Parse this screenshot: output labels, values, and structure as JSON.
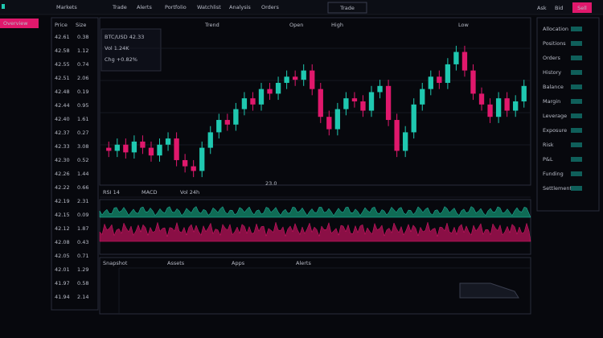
{
  "topbar": {
    "items": [
      "Markets",
      "Trade",
      "Alerts",
      "Portfolio",
      "Watchlist",
      "Analysis",
      "Orders"
    ],
    "button": "Trade",
    "right": [
      "Ask",
      "Bid"
    ],
    "action": "Sell"
  },
  "sidebar": {
    "active": "Overview"
  },
  "order_book": {
    "header": [
      "Price",
      "Size"
    ],
    "rows": [
      [
        "42.61",
        "0.38"
      ],
      [
        "42.58",
        "1.12"
      ],
      [
        "42.55",
        "0.74"
      ],
      [
        "42.51",
        "2.06"
      ],
      [
        "42.48",
        "0.19"
      ],
      [
        "42.44",
        "0.95"
      ],
      [
        "42.40",
        "1.61"
      ],
      [
        "42.37",
        "0.27"
      ],
      [
        "42.33",
        "3.08"
      ],
      [
        "42.30",
        "0.52"
      ],
      [
        "42.26",
        "1.44"
      ],
      [
        "42.22",
        "0.66"
      ],
      [
        "42.19",
        "2.31"
      ],
      [
        "42.15",
        "0.09"
      ],
      [
        "42.12",
        "1.87"
      ],
      [
        "42.08",
        "0.43"
      ],
      [
        "42.05",
        "0.71"
      ],
      [
        "42.01",
        "1.29"
      ],
      [
        "41.97",
        "0.58"
      ],
      [
        "41.94",
        "2.14"
      ]
    ]
  },
  "chart_header": {
    "labels": [
      "Trend",
      "Open",
      "High",
      "Low"
    ],
    "info": [
      "BTC/USD 42.33",
      "Vol 1.24K",
      "Chg +0.82%"
    ]
  },
  "indicators": {
    "labels": [
      "RSI 14",
      "MACD",
      "Vol 24h"
    ],
    "value": "23.0"
  },
  "bottom_panel": {
    "tabs": [
      "Snapshot",
      "Assets",
      "Apps",
      "Alerts"
    ]
  },
  "right_panel": {
    "rows": [
      "Allocation",
      "Positions",
      "Orders",
      "History",
      "Balance",
      "Margin",
      "Leverage",
      "Exposure",
      "Risk",
      "P&L",
      "Funding",
      "Settlement"
    ]
  },
  "chart_data": {
    "type": "candlestick",
    "open": [
      20,
      18,
      22,
      17,
      24,
      20,
      15,
      22,
      26,
      12,
      8,
      5,
      20,
      30,
      38,
      35,
      45,
      52,
      48,
      58,
      55,
      62,
      66,
      64,
      70,
      58,
      40,
      32,
      45,
      52,
      50,
      44,
      56,
      60,
      38,
      18,
      30,
      48,
      58,
      66,
      62,
      74,
      82,
      70,
      55,
      48,
      40,
      52,
      44,
      50
    ],
    "high": [
      24,
      26,
      26,
      28,
      28,
      24,
      26,
      30,
      30,
      16,
      12,
      24,
      34,
      42,
      42,
      49,
      56,
      56,
      62,
      62,
      66,
      70,
      70,
      74,
      74,
      62,
      44,
      49,
      56,
      56,
      54,
      60,
      64,
      64,
      42,
      34,
      52,
      62,
      70,
      70,
      78,
      86,
      86,
      74,
      59,
      52,
      56,
      56,
      54,
      64
    ],
    "low": [
      14,
      14,
      13,
      13,
      16,
      11,
      11,
      18,
      8,
      4,
      1,
      1,
      16,
      26,
      31,
      31,
      41,
      44,
      44,
      51,
      51,
      58,
      60,
      60,
      54,
      36,
      28,
      28,
      41,
      46,
      40,
      40,
      52,
      34,
      14,
      14,
      26,
      44,
      54,
      58,
      58,
      70,
      66,
      51,
      44,
      36,
      36,
      40,
      40,
      46
    ],
    "close": [
      18,
      22,
      17,
      24,
      20,
      15,
      22,
      26,
      12,
      8,
      5,
      20,
      30,
      38,
      35,
      45,
      52,
      48,
      58,
      55,
      62,
      66,
      64,
      70,
      58,
      40,
      32,
      45,
      52,
      50,
      44,
      56,
      60,
      38,
      18,
      30,
      48,
      58,
      66,
      62,
      74,
      82,
      70,
      55,
      48,
      40,
      52,
      44,
      50,
      60
    ],
    "ylim": [
      0,
      100
    ],
    "up_color": "#1fc8b0",
    "down_color": "#e0186c"
  }
}
